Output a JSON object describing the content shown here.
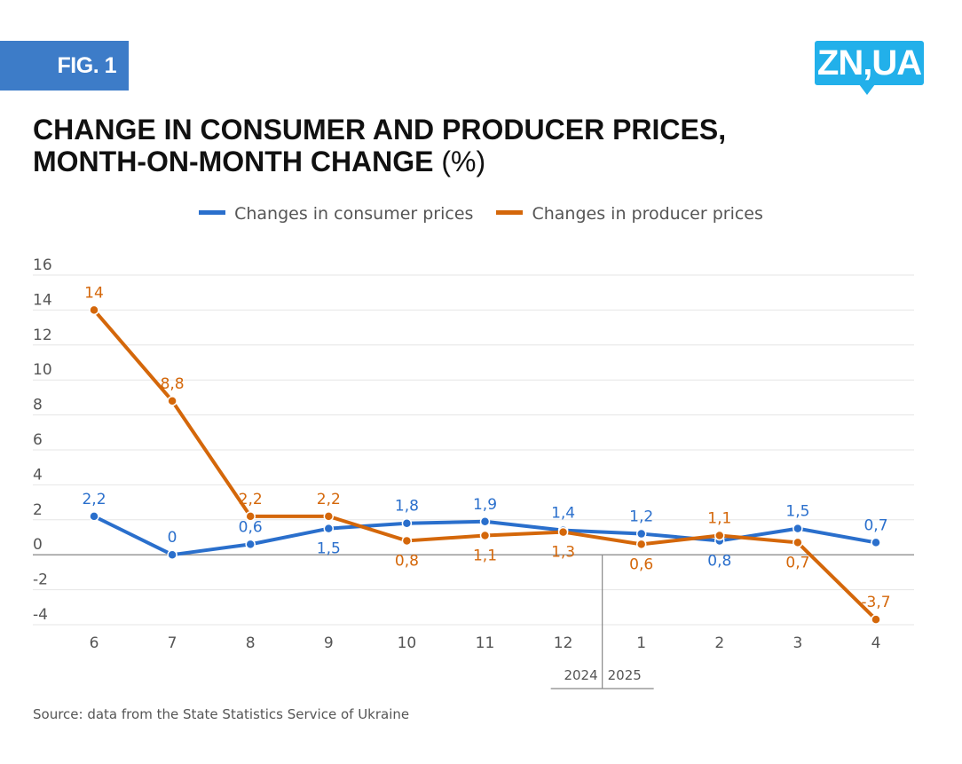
{
  "header": {
    "fig_label": "FIG. 1",
    "logo_text": "ZN,UA",
    "title_line1": "CHANGE IN CONSUMER AND PRODUCER PRICES,",
    "title_line2": "MONTH-ON-MONTH CHANGE",
    "title_unit": "(%)"
  },
  "colors": {
    "consumer": "#2a6fcc",
    "producer": "#d4670a",
    "badge": "#3d7cc8",
    "logo": "#22b0ea"
  },
  "chart_data": {
    "type": "line",
    "title": "CHANGE IN CONSUMER AND PRODUCER PRICES, MONTH-ON-MONTH CHANGE (%)",
    "xlabel": "",
    "ylabel": "",
    "categories": [
      "6",
      "7",
      "8",
      "9",
      "10",
      "11",
      "12",
      "1",
      "2",
      "3",
      "4"
    ],
    "year_labels": [
      {
        "label": "2024",
        "after_category": "12"
      },
      {
        "label": "2025",
        "from_category": "1"
      }
    ],
    "yticks": [
      16,
      14,
      12,
      10,
      8,
      6,
      4,
      2,
      0,
      -2,
      -4
    ],
    "ylim": [
      -4,
      16
    ],
    "grid": true,
    "legend_position": "top-center",
    "series": [
      {
        "name": "Changes in consumer prices",
        "color": "#2a6fcc",
        "values": [
          2.2,
          0,
          0.6,
          1.5,
          1.8,
          1.9,
          1.4,
          1.2,
          0.8,
          1.5,
          0.7
        ],
        "labels": [
          "2,2",
          "0",
          "0,6",
          "1,5",
          "1,8",
          "1,9",
          "1,4",
          "1,2",
          "0,8",
          "1,5",
          "0,7"
        ],
        "label_pos": [
          "above",
          "above",
          "above",
          "below",
          "above",
          "above",
          "above",
          "above",
          "below",
          "above",
          "above"
        ]
      },
      {
        "name": "Changes in producer prices",
        "color": "#d4670a",
        "values": [
          14,
          8.8,
          2.2,
          2.2,
          0.8,
          1.1,
          1.3,
          0.6,
          1.1,
          0.7,
          -3.7
        ],
        "labels": [
          "14",
          "8,8",
          "2,2",
          "2,2",
          "0,8",
          "1,1",
          "1,3",
          "0,6",
          "1,1",
          "0,7",
          "-3,7"
        ],
        "label_pos": [
          "above",
          "above",
          "above",
          "above",
          "below",
          "below",
          "below",
          "below",
          "above",
          "below",
          "above"
        ]
      }
    ]
  },
  "footer": {
    "source": "Source: data from the State Statistics Service of Ukraine"
  }
}
